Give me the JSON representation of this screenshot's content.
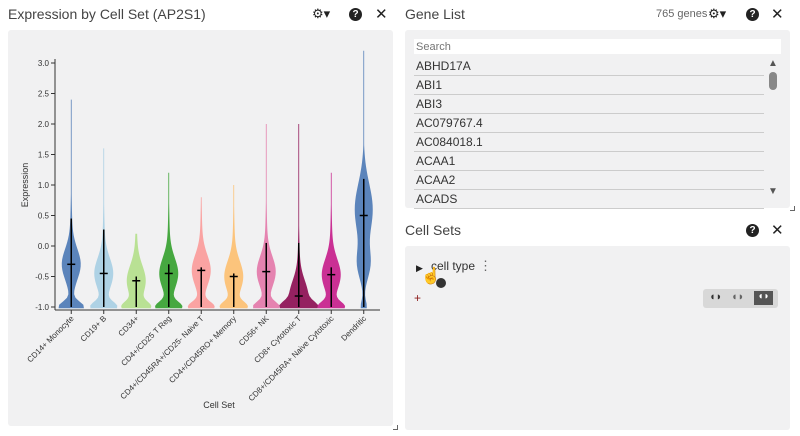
{
  "violin_panel": {
    "title": "Expression by Cell Set (AP2S1)",
    "settings_icon": "gear-icon",
    "help_icon": "question-icon",
    "close_icon": "close-icon"
  },
  "gene_list": {
    "title": "Gene List",
    "count": "765 genes",
    "search_placeholder": "Search",
    "genes": [
      "ABHD17A",
      "ABI1",
      "ABI3",
      "AC079767.4",
      "AC084018.1",
      "ACAA1",
      "ACAA2",
      "ACADS"
    ]
  },
  "cell_sets": {
    "title": "Cell Sets",
    "root_label": "cell type",
    "add_label": "+",
    "set_ops": [
      "union",
      "intersection",
      "complement"
    ]
  },
  "chart_data": {
    "type": "violin",
    "xlabel": "Cell Set",
    "ylabel": "Expression",
    "ylim": [
      -1.0,
      3.2
    ],
    "yticks": [
      "3.0",
      "2.5",
      "2.0",
      "1.5",
      "1.0",
      "0.5",
      "0.0",
      "-0.5",
      "-1.0"
    ],
    "categories": [
      {
        "name": "CD14+ Monocyte",
        "color": "#4a78b5",
        "median": -0.3,
        "q_hi": 0.45,
        "max": 2.4
      },
      {
        "name": "CD19+ B",
        "color": "#a6cee3",
        "median": -0.45,
        "q_hi": 0.27,
        "max": 1.6
      },
      {
        "name": "CD34+",
        "color": "#b2df8a",
        "median": -0.57,
        "q_hi": -0.5,
        "max": 0.2
      },
      {
        "name": "CD4+/CD25 T Reg",
        "color": "#33a02c",
        "median": -0.45,
        "q_hi": -0.3,
        "max": 1.2
      },
      {
        "name": "CD4+/CD45RA+/CD25- Naive T",
        "color": "#fb9a99",
        "median": -0.4,
        "q_hi": -0.4,
        "max": 0.8
      },
      {
        "name": "CD4+/CD45RO+ Memory",
        "color": "#fdbf6f",
        "median": -0.5,
        "q_hi": -0.5,
        "max": 1.0
      },
      {
        "name": "CD56+ NK",
        "color": "#e377a8",
        "median": -0.42,
        "q_hi": 0.05,
        "max": 2.0
      },
      {
        "name": "CD8+ Cytotoxic T",
        "color": "#8b0a50",
        "median": -0.82,
        "q_hi": 0.05,
        "max": 2.0
      },
      {
        "name": "CD8+/CD45RA+ Naive Cytotoxic",
        "color": "#c51b8a",
        "median": -0.47,
        "q_hi": -0.35,
        "max": 1.2
      },
      {
        "name": "Dendritic",
        "color": "#4a78b5",
        "median": 0.5,
        "q_hi": 1.1,
        "max": 3.2
      }
    ]
  }
}
